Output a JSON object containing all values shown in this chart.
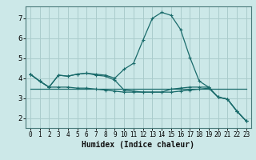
{
  "xlabel": "Humidex (Indice chaleur)",
  "background_color": "#cce8e8",
  "grid_color": "#aacccc",
  "line_color": "#1a6b6b",
  "x": [
    0,
    1,
    2,
    3,
    4,
    5,
    6,
    7,
    8,
    9,
    10,
    11,
    12,
    13,
    14,
    15,
    16,
    17,
    18,
    19,
    20,
    21,
    22,
    23
  ],
  "line1": [
    4.2,
    3.85,
    3.55,
    4.15,
    4.1,
    4.2,
    4.25,
    4.2,
    4.15,
    4.0,
    4.45,
    4.75,
    5.9,
    7.0,
    7.3,
    7.15,
    6.45,
    5.05,
    3.85,
    3.55,
    3.05,
    2.95,
    2.35,
    1.85
  ],
  "line2": [
    4.2,
    3.85,
    3.55,
    4.15,
    4.1,
    4.2,
    4.25,
    4.15,
    4.1,
    3.9,
    3.4,
    3.35,
    3.3,
    3.3,
    3.3,
    3.45,
    3.5,
    3.55,
    3.55,
    3.55,
    3.05,
    2.95,
    2.35,
    1.85
  ],
  "line3": [
    4.2,
    3.85,
    3.55,
    3.55,
    3.55,
    3.5,
    3.5,
    3.45,
    3.4,
    3.35,
    3.3,
    3.3,
    3.3,
    3.3,
    3.3,
    3.3,
    3.35,
    3.4,
    3.45,
    3.5,
    3.05,
    2.95,
    2.35,
    1.85
  ],
  "line4_x": [
    0,
    23
  ],
  "line4_y": [
    3.45,
    3.45
  ],
  "ylim": [
    1.5,
    7.6
  ],
  "xlim": [
    -0.5,
    23.5
  ],
  "yticks": [
    2,
    3,
    4,
    5,
    6,
    7
  ],
  "xticks": [
    0,
    1,
    2,
    3,
    4,
    5,
    6,
    7,
    8,
    9,
    10,
    11,
    12,
    13,
    14,
    15,
    16,
    17,
    18,
    19,
    20,
    21,
    22,
    23
  ],
  "tick_fontsize": 6,
  "xlabel_fontsize": 7
}
